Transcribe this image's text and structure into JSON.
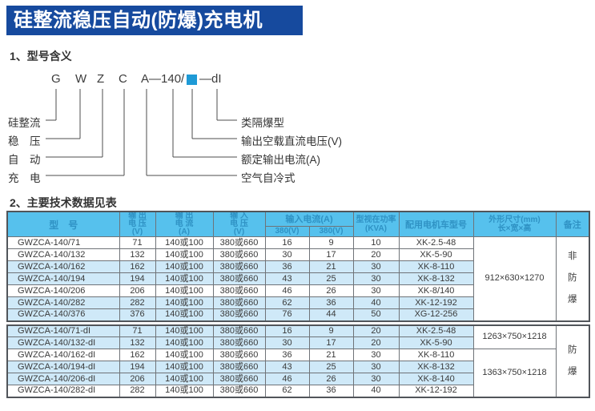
{
  "page_title": "硅整流稳压自动(防爆)充电机",
  "sections": {
    "s1": "1、型号含义",
    "s2": "2、主要技术数据见表"
  },
  "model_diagram": {
    "code_parts": [
      "G",
      "W",
      "Z",
      "C",
      "A—140/",
      "—dI"
    ],
    "square_color": "#1e9ad6",
    "left_labels": [
      "硅整流",
      "稳　压",
      "自　动",
      "充　电"
    ],
    "right_labels": [
      "类隔爆型",
      "输出空载直流电压(V)",
      "额定输出电流(A)",
      "空气自冷式"
    ]
  },
  "table": {
    "headers": {
      "model": "型　号",
      "out_v": "输 出\n电 压\n(V)",
      "out_a": "输 出\n电 流\n(A)",
      "in_v": "输 入\n电 压\n(V)",
      "in_a": "输入电流(A)",
      "in_a_sub1": "380(V)",
      "in_a_sub2": "380(V)",
      "kva": "型视在功率\n(KVA)",
      "motor": "配用电机车型号",
      "dims": "外形尺寸(mm)\n长×宽×高",
      "remark": "备注"
    },
    "groups": [
      {
        "rows": [
          {
            "model": "GWZCA-140/71",
            "out_v": "71",
            "out_a": "140或100",
            "in_v": "380或660",
            "ia1": "16",
            "ia2": "9",
            "kva": "10",
            "motor": "XK-2.5-48",
            "shaded": false
          },
          {
            "model": "GWZCA-140/132",
            "out_v": "132",
            "out_a": "140或100",
            "in_v": "380或660",
            "ia1": "30",
            "ia2": "17",
            "kva": "20",
            "motor": "XK-5-90",
            "shaded": false
          },
          {
            "model": "GWZCA-140/162",
            "out_v": "162",
            "out_a": "140或100",
            "in_v": "380或660",
            "ia1": "36",
            "ia2": "21",
            "kva": "30",
            "motor": "XK-8-110",
            "shaded": true
          },
          {
            "model": "GWZCA-140/194",
            "out_v": "194",
            "out_a": "140或100",
            "in_v": "380或660",
            "ia1": "43",
            "ia2": "25",
            "kva": "30",
            "motor": "XK-8-132",
            "shaded": true
          },
          {
            "model": "GWZCA-140/206",
            "out_v": "206",
            "out_a": "140或100",
            "in_v": "380或660",
            "ia1": "46",
            "ia2": "26",
            "kva": "30",
            "motor": "XK-8/140",
            "shaded": false
          },
          {
            "model": "GWZCA-140/282",
            "out_v": "282",
            "out_a": "140或100",
            "in_v": "380或660",
            "ia1": "62",
            "ia2": "36",
            "kva": "40",
            "motor": "XK-12-192",
            "shaded": true
          },
          {
            "model": "GWZCA-140/376",
            "out_v": "376",
            "out_a": "140或100",
            "in_v": "380或660",
            "ia1": "76",
            "ia2": "44",
            "kva": "50",
            "motor": "XG-12-256",
            "shaded": true
          }
        ],
        "dim_spans": [
          {
            "start": 0,
            "span": 7,
            "value": "912×630×1270"
          }
        ],
        "remark": "非\n防\n爆"
      },
      {
        "rows": [
          {
            "model": "GWZCA-140/71-dI",
            "out_v": "71",
            "out_a": "140或100",
            "in_v": "380或660",
            "ia1": "16",
            "ia2": "9",
            "kva": "20",
            "motor": "XK-2.5-48",
            "shaded": true
          },
          {
            "model": "GWZCA-140/132-dI",
            "out_v": "132",
            "out_a": "140或100",
            "in_v": "380或660",
            "ia1": "30",
            "ia2": "17",
            "kva": "20",
            "motor": "XK-5-90",
            "shaded": true
          },
          {
            "model": "GWZCA-140/162-dI",
            "out_v": "162",
            "out_a": "140或100",
            "in_v": "380或660",
            "ia1": "36",
            "ia2": "21",
            "kva": "30",
            "motor": "XK-8-110",
            "shaded": false
          },
          {
            "model": "GWZCA-140/194-dI",
            "out_v": "194",
            "out_a": "140或100",
            "in_v": "380或660",
            "ia1": "43",
            "ia2": "25",
            "kva": "30",
            "motor": "XK-8-132",
            "shaded": true
          },
          {
            "model": "GWZCA-140/206-dI",
            "out_v": "206",
            "out_a": "140或100",
            "in_v": "380或660",
            "ia1": "46",
            "ia2": "26",
            "kva": "30",
            "motor": "XK-8-140",
            "shaded": true
          },
          {
            "model": "GWZCA-140/282-dI",
            "out_v": "282",
            "out_a": "140或100",
            "in_v": "380或660",
            "ia1": "62",
            "ia2": "36",
            "kva": "40",
            "motor": "XK-12-192",
            "shaded": false
          }
        ],
        "dim_spans": [
          {
            "start": 0,
            "span": 2,
            "value": "1263×750×1218"
          },
          {
            "start": 2,
            "span": 4,
            "value": "1363×750×1218"
          }
        ],
        "remark": "防\n爆"
      }
    ]
  },
  "colors": {
    "banner_bg": "#164a9e",
    "banner_text": "#ffffff",
    "table_header_bg": "#56c1ed",
    "table_header_text": "#2f92c4",
    "row_stripe": "#cfe9f8",
    "accent_square": "#1e9ad6"
  }
}
